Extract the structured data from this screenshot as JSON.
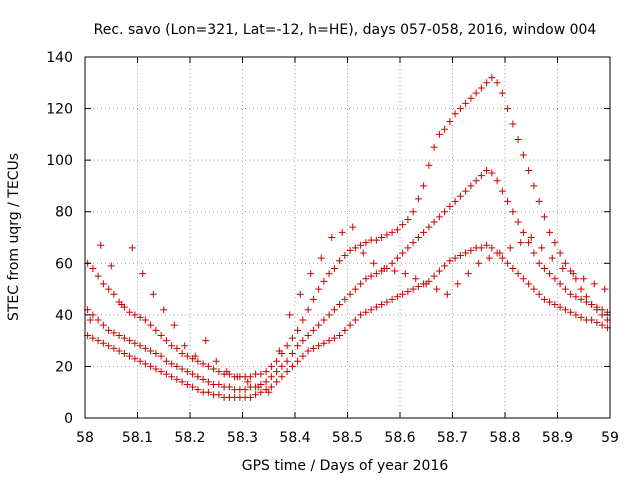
{
  "chart_data": {
    "type": "scatter",
    "title": "Rec. savo (Lon=321, Lat=-12, h=HE), days 057-058, 2016, window 004",
    "xlabel": "GPS time / Days of year 2016",
    "ylabel": "STEC from uqrg / TECUs",
    "xlim": [
      58,
      59
    ],
    "ylim": [
      0,
      140
    ],
    "grid": true,
    "legend": "none",
    "marker": "+",
    "color": "#cc0000",
    "x_ticks": [
      58,
      58.1,
      58.2,
      58.3,
      58.4,
      58.5,
      58.6,
      58.7,
      58.8,
      58.9,
      59
    ],
    "x_tick_labels": [
      "58",
      "58.1",
      "58.2",
      "58.3",
      "58.4",
      "58.5",
      "58.6",
      "58.7",
      "58.8",
      "58.9",
      "59"
    ],
    "y_ticks": [
      0,
      20,
      40,
      60,
      80,
      100,
      120,
      140
    ],
    "y_tick_labels": [
      "0",
      "20",
      "40",
      "60",
      "80",
      "100",
      "120",
      "140"
    ],
    "series": [
      {
        "x": [
          58.005,
          58.015,
          58.025,
          58.035,
          58.045,
          58.055,
          58.065,
          58.075,
          58.085,
          58.095,
          58.105,
          58.115,
          58.125,
          58.135,
          58.145,
          58.155,
          58.165,
          58.175,
          58.185,
          58.195,
          58.205,
          58.215,
          58.225,
          58.235,
          58.245,
          58.255,
          58.265,
          58.275,
          58.285,
          58.295,
          58.305,
          58.315,
          58.325,
          58.335,
          58.345,
          58.355,
          58.365,
          58.375,
          58.385,
          58.395,
          58.405,
          58.415,
          58.425,
          58.435,
          58.445,
          58.455,
          58.465,
          58.475,
          58.485,
          58.495,
          58.505,
          58.515,
          58.525,
          58.535,
          58.545,
          58.555,
          58.565,
          58.575,
          58.585,
          58.595,
          58.605,
          58.615,
          58.625,
          58.635,
          58.645,
          58.655,
          58.665,
          58.675,
          58.685,
          58.695,
          58.705,
          58.715,
          58.725,
          58.735,
          58.745,
          58.755,
          58.765,
          58.775,
          58.785,
          58.795,
          58.805,
          58.815,
          58.825,
          58.835,
          58.845,
          58.855,
          58.865,
          58.875,
          58.885,
          58.895,
          58.905,
          58.915,
          58.925,
          58.935,
          58.945,
          58.955,
          58.965,
          58.975,
          58.985,
          58.995
        ],
        "y": [
          60,
          58,
          55,
          52,
          50,
          48,
          45,
          43,
          41,
          40,
          39,
          38,
          36,
          34,
          32,
          30,
          28,
          27,
          25,
          24,
          23,
          22,
          21,
          20,
          19,
          18,
          17,
          17,
          16,
          16,
          16,
          16,
          17,
          17,
          18,
          20,
          22,
          25,
          28,
          31,
          34,
          38,
          42,
          46,
          50,
          53,
          56,
          58,
          61,
          63,
          65,
          66,
          67,
          68,
          69,
          69,
          70,
          71,
          72,
          73,
          75,
          77,
          80,
          85,
          90,
          98,
          105,
          110,
          112,
          115,
          118,
          120,
          122,
          124,
          126,
          128,
          130,
          132,
          130,
          126,
          120,
          114,
          108,
          102,
          96,
          90,
          84,
          78,
          72,
          68,
          64,
          60,
          57,
          54,
          50,
          47,
          44,
          42,
          40,
          38
        ]
      },
      {
        "x": [
          58.005,
          58.015,
          58.025,
          58.035,
          58.045,
          58.055,
          58.065,
          58.075,
          58.085,
          58.095,
          58.105,
          58.115,
          58.125,
          58.135,
          58.145,
          58.155,
          58.165,
          58.175,
          58.185,
          58.195,
          58.205,
          58.215,
          58.225,
          58.235,
          58.245,
          58.255,
          58.265,
          58.275,
          58.285,
          58.295,
          58.305,
          58.315,
          58.325,
          58.335,
          58.345,
          58.355,
          58.365,
          58.375,
          58.385,
          58.395,
          58.405,
          58.415,
          58.425,
          58.435,
          58.445,
          58.455,
          58.465,
          58.475,
          58.485,
          58.495,
          58.505,
          58.515,
          58.525,
          58.535,
          58.545,
          58.555,
          58.565,
          58.575,
          58.585,
          58.595,
          58.605,
          58.615,
          58.625,
          58.635,
          58.645,
          58.655,
          58.665,
          58.675,
          58.685,
          58.695,
          58.705,
          58.715,
          58.725,
          58.735,
          58.745,
          58.755,
          58.765,
          58.775,
          58.785,
          58.795,
          58.805,
          58.815,
          58.825,
          58.835,
          58.845,
          58.855,
          58.865,
          58.875,
          58.885,
          58.895,
          58.905,
          58.915,
          58.925,
          58.935,
          58.945,
          58.955,
          58.965,
          58.975,
          58.985,
          58.995
        ],
        "y": [
          42,
          40,
          38,
          36,
          34,
          33,
          32,
          31,
          30,
          29,
          28,
          27,
          26,
          25,
          24,
          22,
          21,
          20,
          19,
          18,
          17,
          16,
          15,
          14,
          13,
          13,
          12,
          12,
          11,
          11,
          11,
          12,
          12,
          13,
          14,
          16,
          18,
          20,
          22,
          25,
          28,
          30,
          32,
          34,
          36,
          38,
          40,
          42,
          44,
          46,
          48,
          50,
          52,
          54,
          55,
          56,
          57,
          58,
          60,
          62,
          64,
          66,
          68,
          70,
          72,
          74,
          76,
          78,
          80,
          82,
          84,
          86,
          88,
          90,
          92,
          94,
          96,
          95,
          92,
          88,
          84,
          80,
          76,
          72,
          68,
          64,
          60,
          58,
          56,
          54,
          52,
          50,
          48,
          47,
          46,
          45,
          44,
          43,
          42,
          41
        ]
      },
      {
        "x": [
          58.005,
          58.015,
          58.025,
          58.035,
          58.045,
          58.055,
          58.065,
          58.075,
          58.085,
          58.095,
          58.105,
          58.115,
          58.125,
          58.135,
          58.145,
          58.155,
          58.165,
          58.175,
          58.185,
          58.195,
          58.205,
          58.215,
          58.225,
          58.235,
          58.245,
          58.255,
          58.265,
          58.275,
          58.285,
          58.295,
          58.305,
          58.315,
          58.325,
          58.335,
          58.345,
          58.355,
          58.365,
          58.375,
          58.385,
          58.395,
          58.405,
          58.415,
          58.425,
          58.435,
          58.445,
          58.455,
          58.465,
          58.475,
          58.485,
          58.495,
          58.505,
          58.515,
          58.525,
          58.535,
          58.545,
          58.555,
          58.565,
          58.575,
          58.585,
          58.595,
          58.605,
          58.615,
          58.625,
          58.635,
          58.645,
          58.655,
          58.665,
          58.675,
          58.685,
          58.695,
          58.705,
          58.715,
          58.725,
          58.735,
          58.745,
          58.755,
          58.765,
          58.775,
          58.785,
          58.795,
          58.805,
          58.815,
          58.825,
          58.835,
          58.845,
          58.855,
          58.865,
          58.875,
          58.885,
          58.895,
          58.905,
          58.915,
          58.925,
          58.935,
          58.945,
          58.955,
          58.965,
          58.975,
          58.985,
          58.995
        ],
        "y": [
          32,
          31,
          30,
          29,
          28,
          27,
          26,
          25,
          24,
          23,
          22,
          21,
          20,
          19,
          18,
          17,
          16,
          15,
          14,
          13,
          12,
          11,
          10,
          10,
          9,
          9,
          8,
          8,
          8,
          8,
          8,
          8,
          9,
          10,
          11,
          12,
          14,
          16,
          18,
          20,
          22,
          24,
          26,
          27,
          28,
          29,
          30,
          31,
          32,
          34,
          36,
          38,
          40,
          41,
          42,
          43,
          44,
          45,
          46,
          47,
          48,
          49,
          50,
          51,
          52,
          53,
          55,
          57,
          59,
          61,
          62,
          63,
          64,
          65,
          66,
          66,
          67,
          66,
          64,
          62,
          60,
          58,
          56,
          54,
          52,
          50,
          48,
          46,
          45,
          44,
          43,
          42,
          41,
          40,
          39,
          38,
          38,
          37,
          36,
          35
        ]
      },
      {
        "x": [
          58.01,
          58.03,
          58.05,
          58.07,
          58.09,
          58.11,
          58.13,
          58.15,
          58.17,
          58.19,
          58.21,
          58.23,
          58.25,
          58.27,
          58.29,
          58.31,
          58.33,
          58.35,
          58.37,
          58.39,
          58.41,
          58.43,
          58.45,
          58.47,
          58.49,
          58.51,
          58.53,
          58.55,
          58.57,
          58.59,
          58.61,
          58.63,
          58.65,
          58.67,
          58.69,
          58.71,
          58.73,
          58.75,
          58.77,
          58.79,
          58.81,
          58.83,
          58.85,
          58.87,
          58.89,
          58.91,
          58.93,
          58.95,
          58.97,
          58.99
        ],
        "y": [
          38,
          67,
          59,
          44,
          66,
          56,
          48,
          42,
          36,
          28,
          24,
          30,
          22,
          18,
          16,
          14,
          12,
          10,
          26,
          40,
          48,
          56,
          62,
          70,
          72,
          74,
          64,
          60,
          58,
          57,
          56,
          54,
          52,
          50,
          48,
          52,
          56,
          60,
          62,
          64,
          66,
          68,
          70,
          66,
          62,
          58,
          56,
          54,
          52,
          50
        ]
      }
    ]
  }
}
